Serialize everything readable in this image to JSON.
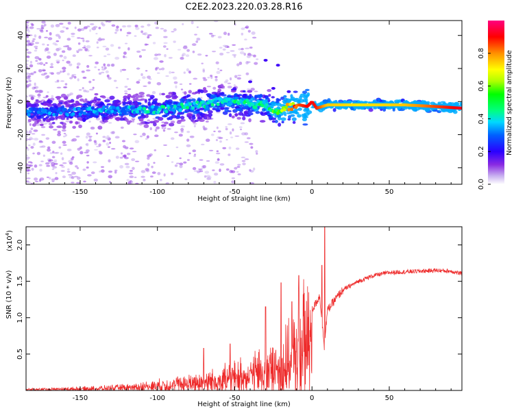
{
  "title": "C2E2.2023.220.03.28.R16",
  "chart_data": [
    {
      "type": "heatmap",
      "name": "spectrogram",
      "xlabel": "Height of straight line (km)",
      "ylabel": "Frequency (Hz)",
      "xlim": [
        -185,
        97
      ],
      "ylim": [
        -50,
        49
      ],
      "xticks": [
        -150,
        -100,
        -50,
        0,
        50
      ],
      "yticks": [
        -40,
        -20,
        0,
        20,
        40
      ],
      "colorbar": {
        "label": "Normalized spectral amplitude",
        "range": [
          0,
          1
        ],
        "ticks": [
          0.0,
          0.2,
          0.4,
          0.6,
          0.8
        ],
        "colormap": "white-violet-blue-cyan-green-yellow-red"
      },
      "ridge": {
        "x": [
          -185,
          -150,
          -120,
          -100,
          -80,
          -60,
          -45,
          -30,
          -22,
          -15,
          -8,
          -3,
          0,
          3,
          10,
          30,
          60,
          80,
          97
        ],
        "freq": [
          -6,
          -6,
          -5,
          -5,
          -3,
          0,
          -1,
          -2,
          -6,
          -3,
          -2,
          -3,
          0,
          -4,
          -2,
          -2,
          -2,
          -3,
          -4
        ],
        "amplitude": [
          0.3,
          0.32,
          0.36,
          0.38,
          0.4,
          0.42,
          0.44,
          0.45,
          0.55,
          0.68,
          0.85,
          0.9,
          0.9,
          0.88,
          0.75,
          0.72,
          0.75,
          0.85,
          0.92
        ]
      }
    },
    {
      "type": "line",
      "name": "snr",
      "xlabel": "Height of straight line (km)",
      "ylabel": "SNR (10 * v/v)",
      "scale_label": "(x10",
      "scale_exp": "4",
      "scale_close": ")",
      "xlim": [
        -185,
        97
      ],
      "ylim": [
        0,
        2.25
      ],
      "xticks": [
        -150,
        -100,
        -50,
        0,
        50
      ],
      "yticks": [
        0.5,
        1.0,
        1.5,
        2.0
      ],
      "ytick_labels": [
        "0.5",
        "1.0",
        "1.5",
        "2.0"
      ],
      "color": "#ee2a2a",
      "envelope": {
        "x": [
          -185,
          -160,
          -140,
          -120,
          -100,
          -80,
          -60,
          -45,
          -35,
          -25,
          -15,
          -10,
          -5,
          0,
          5,
          8,
          10,
          15,
          20,
          30,
          40,
          50,
          60,
          70,
          80,
          90,
          97
        ],
        "y": [
          0.02,
          0.03,
          0.04,
          0.06,
          0.1,
          0.15,
          0.22,
          0.3,
          0.38,
          0.45,
          0.6,
          0.8,
          1.0,
          1.1,
          1.3,
          0.6,
          1.1,
          1.25,
          1.38,
          1.5,
          1.58,
          1.62,
          1.63,
          1.64,
          1.65,
          1.64,
          1.6
        ]
      },
      "spikes": [
        {
          "x": 8.3,
          "y": 2.25
        },
        {
          "x": 6.5,
          "y": 1.72
        },
        {
          "x": -8.5,
          "y": 1.58
        },
        {
          "x": -20,
          "y": 1.48
        },
        {
          "x": -13,
          "y": 1.22
        },
        {
          "x": -30,
          "y": 1.15
        },
        {
          "x": -53,
          "y": 0.64
        },
        {
          "x": -70,
          "y": 0.58
        }
      ]
    }
  ]
}
